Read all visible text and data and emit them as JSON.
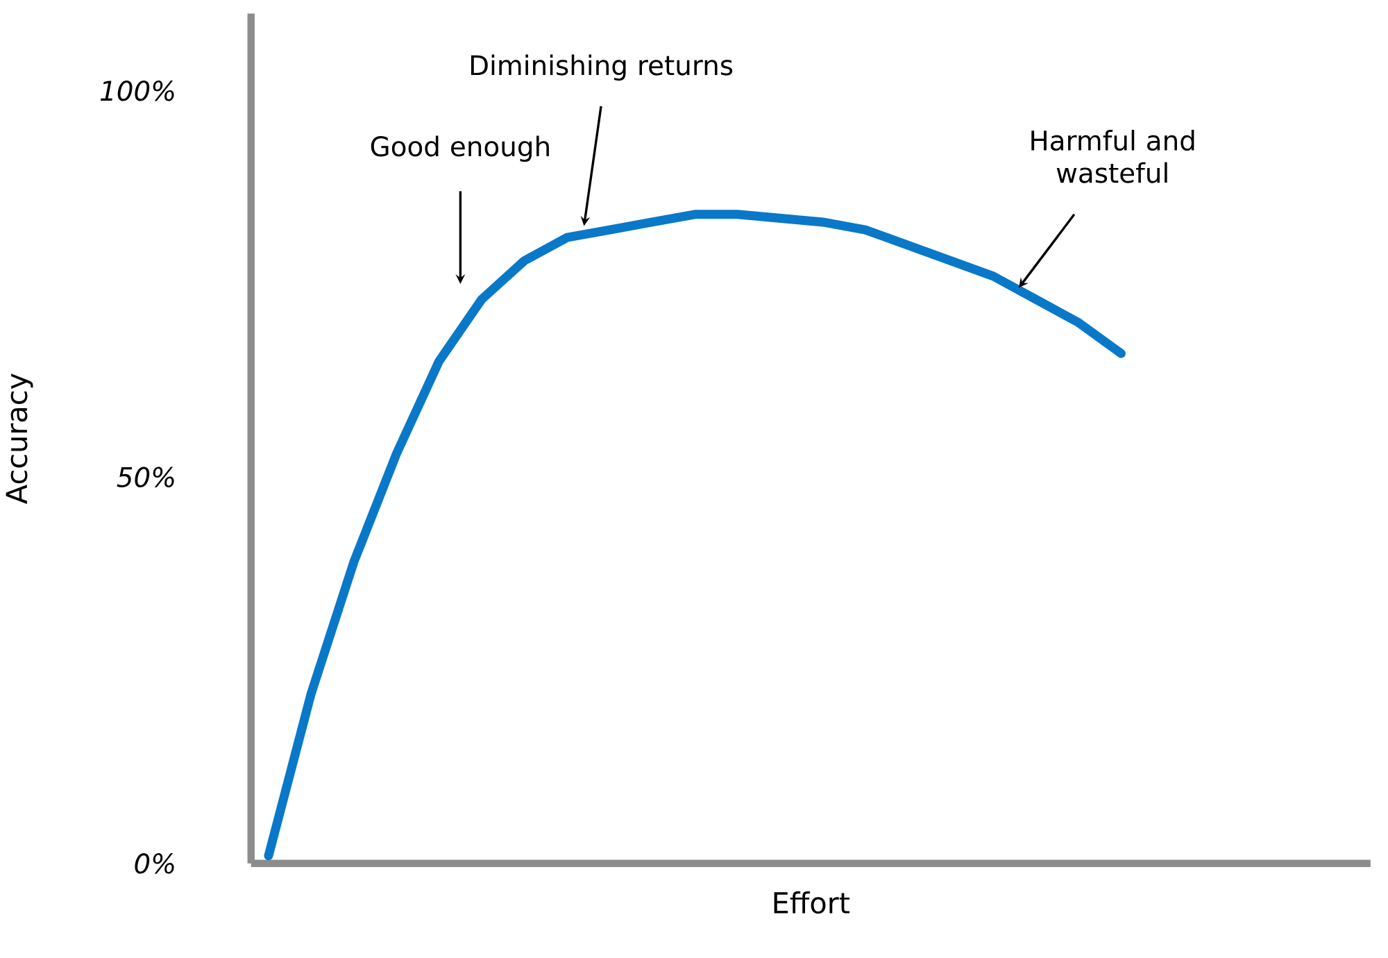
{
  "chart_data": {
    "type": "line",
    "xlabel": "Effort",
    "ylabel": "Accuracy",
    "categories": [
      null,
      null,
      null,
      null,
      null,
      null,
      null,
      null,
      null,
      null,
      null,
      null,
      null,
      null,
      null,
      null,
      null,
      null,
      null,
      null,
      null
    ],
    "values": [
      1,
      22,
      39,
      53,
      65,
      73,
      78,
      81,
      82,
      83,
      84,
      84,
      83.5,
      83,
      82,
      80,
      78,
      76,
      73,
      70,
      66
    ],
    "color": "#0a78c8",
    "ylim": [
      0,
      110
    ],
    "yticks": [
      {
        "value": 0,
        "label": "0%"
      },
      {
        "value": 50,
        "label": "50%"
      },
      {
        "value": 100,
        "label": "100%"
      }
    ],
    "annotations": [
      "Good enough",
      "Diminishing returns",
      "Harmful and wasteful"
    ]
  }
}
